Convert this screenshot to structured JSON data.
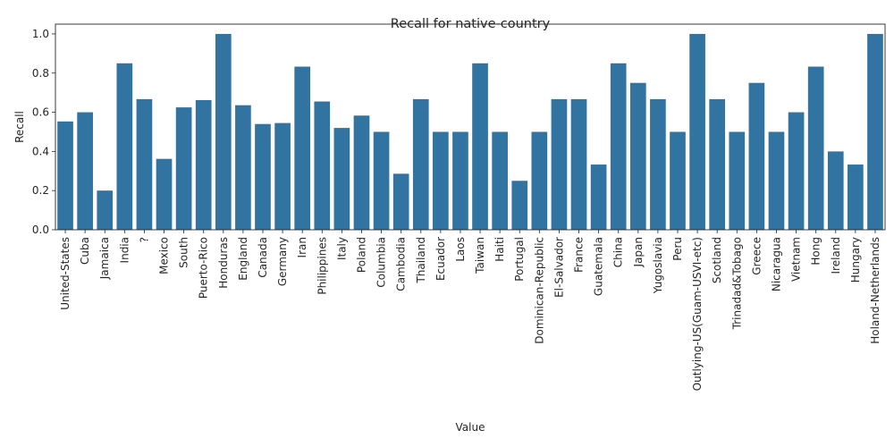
{
  "chart_data": {
    "type": "bar",
    "title": "Recall for native-country",
    "xlabel": "Value",
    "ylabel": "Recall",
    "ylim": [
      0,
      1.05
    ],
    "yticks": [
      "0.0",
      "0.2",
      "0.4",
      "0.6",
      "0.8",
      "1.0"
    ],
    "grid": false,
    "bar_color": "#3274a1",
    "categories": [
      "United-States",
      "Cuba",
      "Jamaica",
      "India",
      "?",
      "Mexico",
      "South",
      "Puerto-Rico",
      "Honduras",
      "England",
      "Canada",
      "Germany",
      "Iran",
      "Philippines",
      "Italy",
      "Poland",
      "Columbia",
      "Cambodia",
      "Thailand",
      "Ecuador",
      "Laos",
      "Taiwan",
      "Haiti",
      "Portugal",
      "Dominican-Republic",
      "El-Salvador",
      "France",
      "Guatemala",
      "China",
      "Japan",
      "Yugoslavia",
      "Peru",
      "Outlying-US(Guam-USVI-etc)",
      "Scotland",
      "Trinadad&Tobago",
      "Greece",
      "Nicaragua",
      "Vietnam",
      "Hong",
      "Ireland",
      "Hungary",
      "Holand-Netherlands"
    ],
    "values": [
      0.553,
      0.6,
      0.2,
      0.85,
      0.667,
      0.362,
      0.625,
      0.662,
      1.0,
      0.636,
      0.54,
      0.545,
      0.833,
      0.655,
      0.52,
      0.583,
      0.5,
      0.286,
      0.667,
      0.5,
      0.5,
      0.85,
      0.5,
      0.25,
      0.5,
      0.667,
      0.667,
      0.333,
      0.85,
      0.75,
      0.667,
      0.5,
      1.0,
      0.667,
      0.5,
      0.75,
      0.5,
      0.6,
      0.833,
      0.4,
      0.333,
      1.0
    ]
  }
}
